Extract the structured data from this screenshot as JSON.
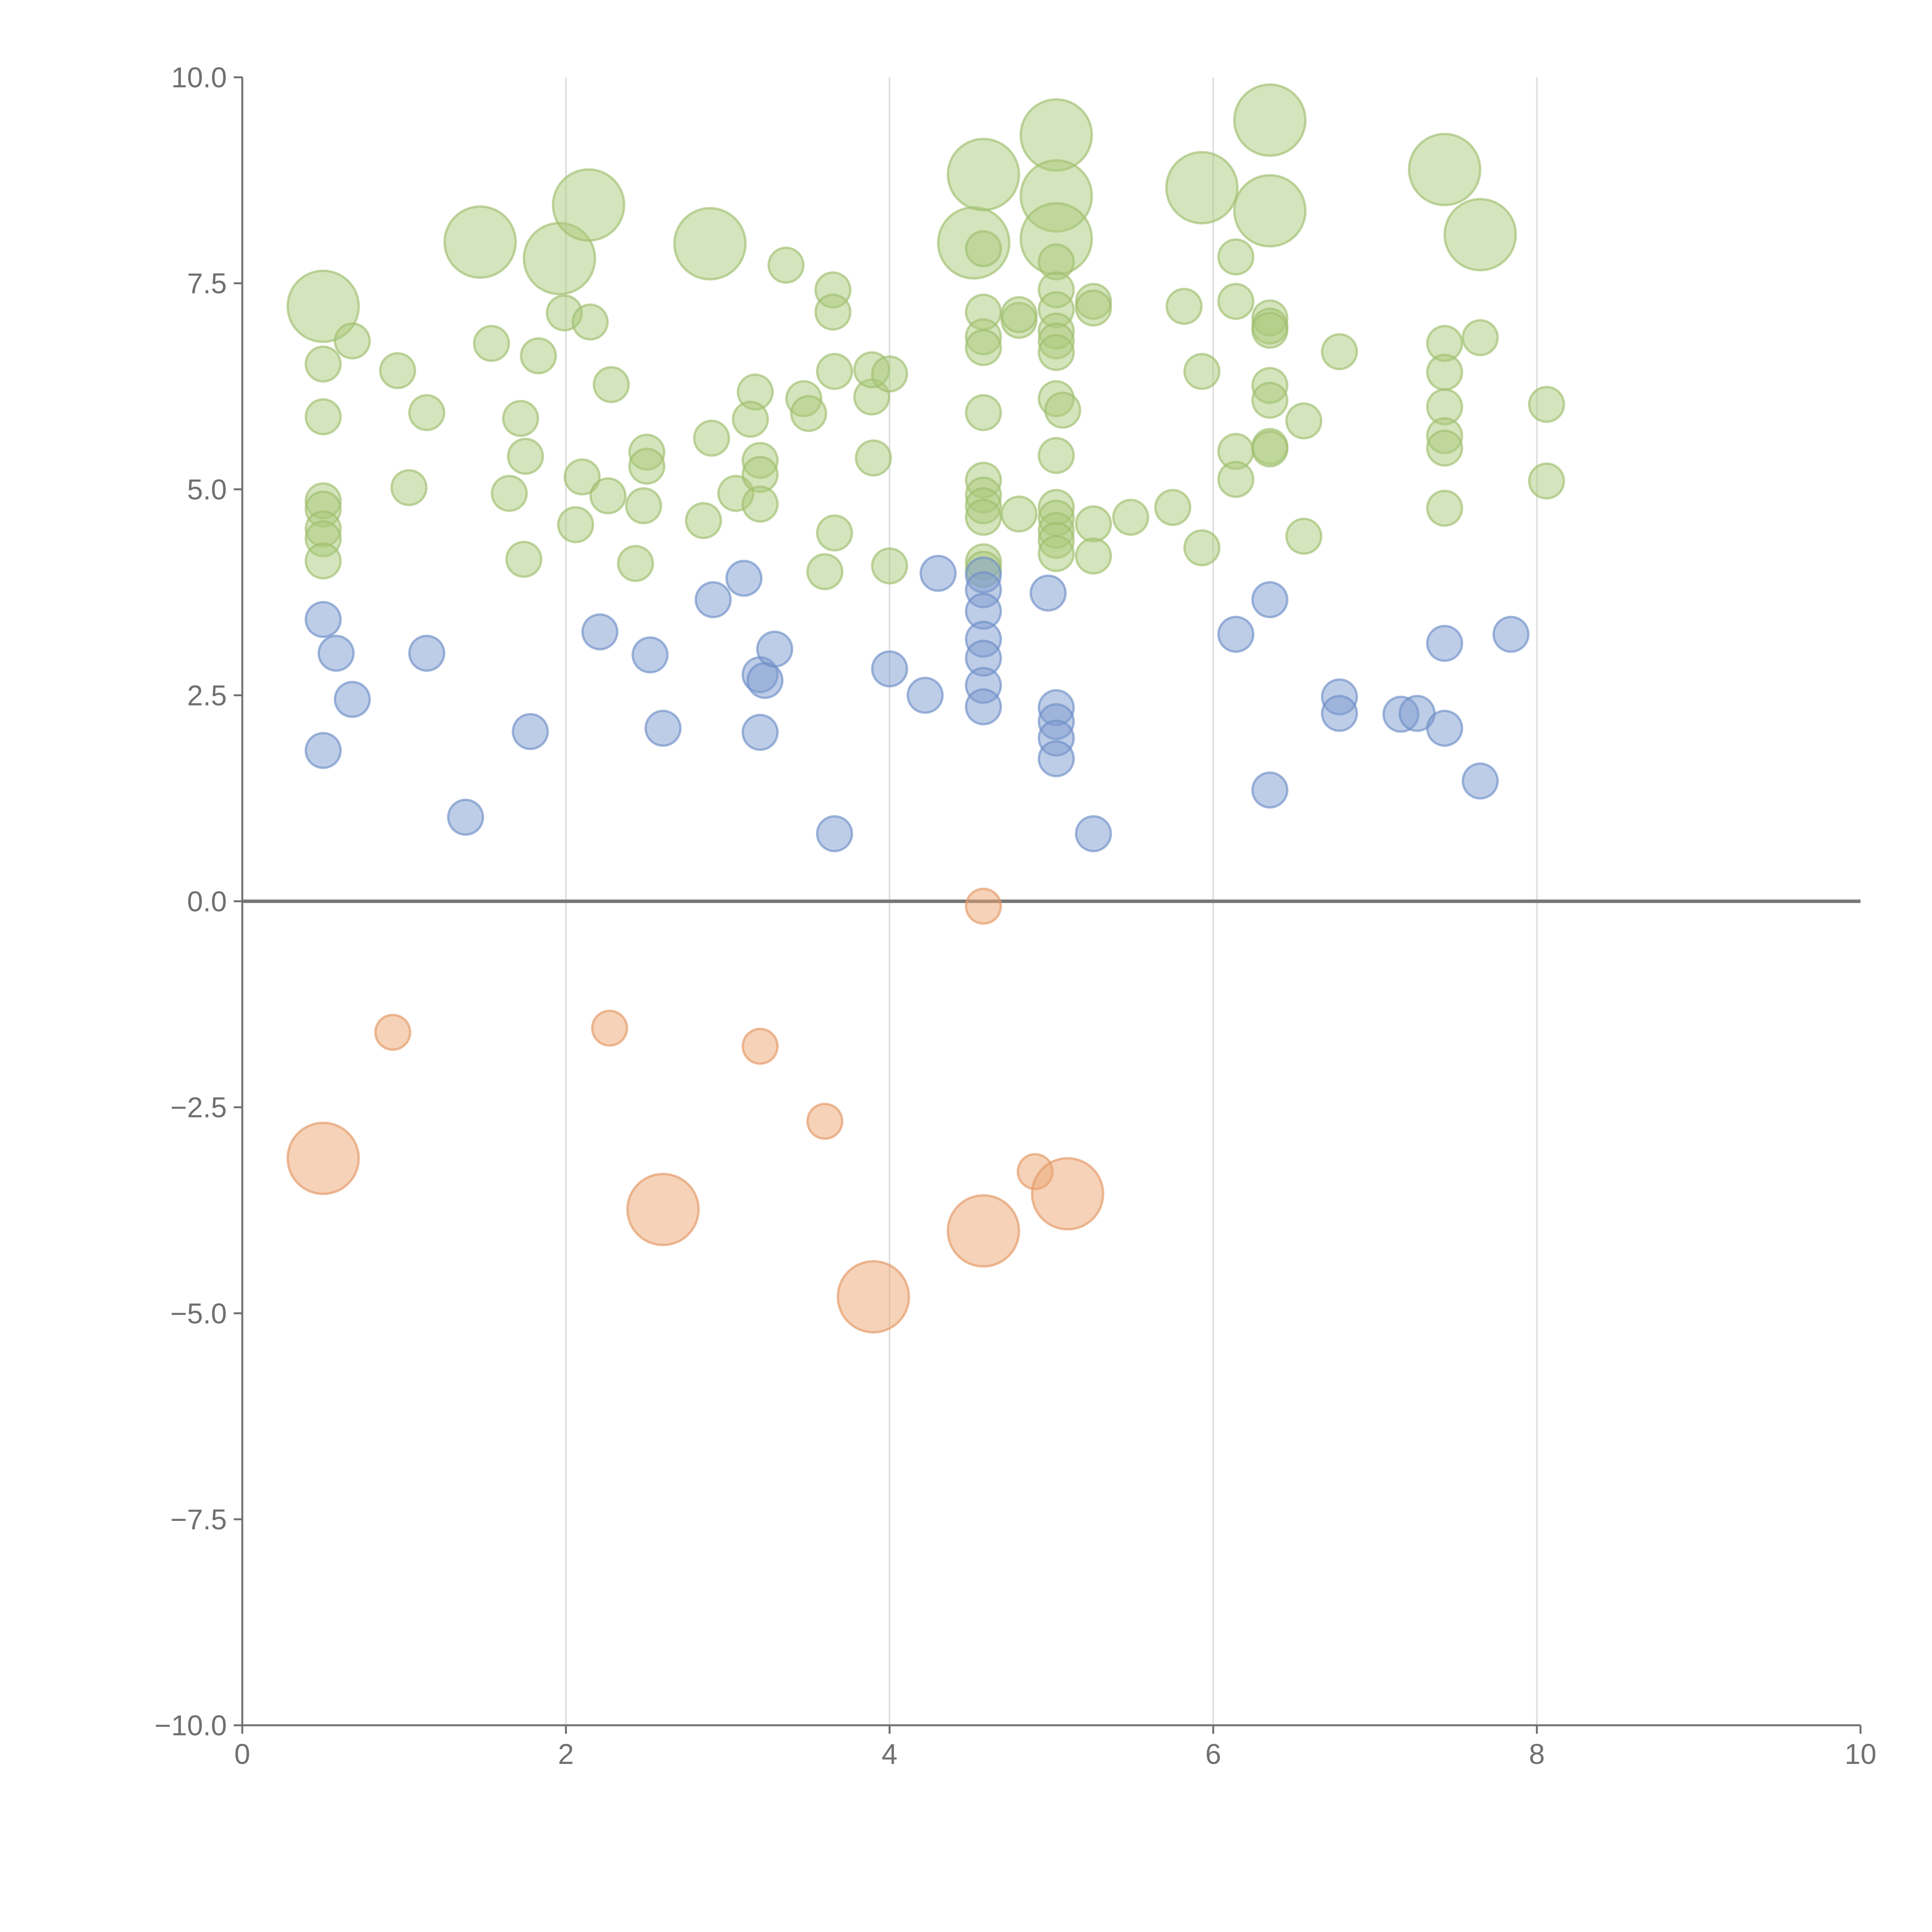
{
  "chart_data": {
    "type": "scatter",
    "title": "",
    "xlabel": "",
    "ylabel": "",
    "xlim": [
      0,
      10
    ],
    "ylim": [
      -10,
      10
    ],
    "x_ticks": [
      "0",
      "2",
      "4",
      "6",
      "8",
      "10"
    ],
    "y_ticks": [
      "10.0",
      "7.5",
      "5.0",
      "2.5",
      "0.0",
      "−2.5",
      "−5.0",
      "−7.5",
      "−10.0"
    ],
    "grid": "vertical",
    "legend": "none",
    "colors": {
      "green_fill": "#a9c97a",
      "green_stroke": "#9fbf6f",
      "blue_fill": "#7d9bd0",
      "blue_stroke": "#6f8fc7",
      "orange_fill": "#eba572",
      "orange_stroke": "#e49865",
      "axis": "#707070",
      "grid": "#dddddd",
      "zero_line": "#777777"
    },
    "series": [
      {
        "color": "green",
        "points": [
          [
            0.5,
            7.22,
            2
          ],
          [
            1.47,
            8.0,
            2
          ],
          [
            1.96,
            7.8,
            2
          ],
          [
            2.14,
            8.45,
            2
          ],
          [
            2.89,
            7.98,
            2
          ],
          [
            4.52,
            7.99,
            2
          ],
          [
            4.58,
            8.82,
            2
          ],
          [
            5.03,
            9.3,
            2
          ],
          [
            5.03,
            8.56,
            2
          ],
          [
            5.03,
            8.04,
            2
          ],
          [
            5.93,
            8.66,
            2
          ],
          [
            6.35,
            9.48,
            2
          ],
          [
            6.35,
            8.38,
            2
          ],
          [
            7.43,
            8.88,
            2
          ],
          [
            7.65,
            8.09,
            2
          ],
          [
            0.5,
            6.52,
            1
          ],
          [
            0.5,
            5.88,
            1
          ],
          [
            0.68,
            6.8,
            1
          ],
          [
            0.96,
            6.44,
            1
          ],
          [
            1.14,
            5.93,
            1
          ],
          [
            1.54,
            6.77,
            1
          ],
          [
            1.72,
            5.86,
            1
          ],
          [
            1.83,
            6.62,
            1
          ],
          [
            1.99,
            7.14,
            1
          ],
          [
            2.15,
            7.03,
            1
          ],
          [
            2.28,
            6.27,
            1
          ],
          [
            3.36,
            7.72,
            1
          ],
          [
            3.65,
            7.42,
            1
          ],
          [
            3.65,
            7.15,
            1
          ],
          [
            3.66,
            6.43,
            1
          ],
          [
            3.89,
            6.12,
            1
          ],
          [
            3.89,
            6.45,
            1
          ],
          [
            4.0,
            6.4,
            1
          ],
          [
            4.58,
            7.15,
            1
          ],
          [
            4.58,
            6.85,
            1
          ],
          [
            4.58,
            6.72,
            1
          ],
          [
            4.58,
            5.93,
            1
          ],
          [
            4.58,
            7.92,
            1
          ],
          [
            4.8,
            7.05,
            1
          ],
          [
            4.8,
            7.12,
            1
          ],
          [
            5.03,
            7.76,
            1
          ],
          [
            5.03,
            7.42,
            1
          ],
          [
            5.03,
            7.18,
            1
          ],
          [
            5.03,
            6.92,
            1
          ],
          [
            5.03,
            6.8,
            1
          ],
          [
            5.03,
            6.66,
            1
          ],
          [
            5.03,
            6.1,
            1
          ],
          [
            5.07,
            5.96,
            1
          ],
          [
            5.26,
            7.28,
            1
          ],
          [
            5.26,
            7.2,
            1
          ],
          [
            5.82,
            7.22,
            1
          ],
          [
            5.93,
            6.43,
            1
          ],
          [
            6.14,
            7.82,
            1
          ],
          [
            6.14,
            7.28,
            1
          ],
          [
            6.35,
            7.08,
            1
          ],
          [
            6.35,
            6.98,
            1
          ],
          [
            6.35,
            6.93,
            1
          ],
          [
            6.35,
            6.26,
            1
          ],
          [
            6.35,
            6.08,
            1
          ],
          [
            6.56,
            5.83,
            1
          ],
          [
            6.78,
            6.67,
            1
          ],
          [
            7.43,
            6.77,
            1
          ],
          [
            7.43,
            6.42,
            1
          ],
          [
            7.43,
            6.0,
            1
          ],
          [
            7.65,
            6.84,
            1
          ],
          [
            8.06,
            6.03,
            1
          ],
          [
            3.17,
            6.18,
            1
          ],
          [
            3.14,
            5.85,
            1
          ],
          [
            3.47,
            6.1,
            1
          ],
          [
            3.5,
            5.92,
            1
          ],
          [
            0.5,
            4.86,
            1
          ],
          [
            0.5,
            4.76,
            1
          ],
          [
            0.5,
            4.52,
            1
          ],
          [
            0.5,
            4.4,
            1
          ],
          [
            0.5,
            4.13,
            1
          ],
          [
            1.03,
            5.02,
            1
          ],
          [
            1.65,
            4.95,
            1
          ],
          [
            1.75,
            5.4,
            1
          ],
          [
            1.74,
            4.15,
            1
          ],
          [
            2.06,
            4.57,
            1
          ],
          [
            2.1,
            5.15,
            1
          ],
          [
            2.26,
            4.92,
            1
          ],
          [
            2.43,
            4.1,
            1
          ],
          [
            2.48,
            4.8,
            1
          ],
          [
            2.5,
            5.45,
            1
          ],
          [
            2.5,
            5.28,
            1
          ],
          [
            2.85,
            4.62,
            1
          ],
          [
            2.9,
            5.62,
            1
          ],
          [
            3.05,
            4.95,
            1
          ],
          [
            3.2,
            5.35,
            1
          ],
          [
            3.2,
            5.18,
            1
          ],
          [
            3.2,
            4.82,
            1
          ],
          [
            3.6,
            4.0,
            1
          ],
          [
            3.66,
            4.47,
            1
          ],
          [
            3.9,
            5.38,
            1
          ],
          [
            4.0,
            4.07,
            1
          ],
          [
            4.58,
            5.11,
            1
          ],
          [
            4.58,
            4.93,
            1
          ],
          [
            4.58,
            4.8,
            1
          ],
          [
            4.58,
            4.66,
            1
          ],
          [
            4.58,
            4.12,
            1
          ],
          [
            4.58,
            4.03,
            1
          ],
          [
            4.8,
            4.7,
            1
          ],
          [
            5.03,
            5.41,
            1
          ],
          [
            5.03,
            4.78,
            1
          ],
          [
            5.03,
            4.65,
            1
          ],
          [
            5.03,
            4.5,
            1
          ],
          [
            5.03,
            4.38,
            1
          ],
          [
            5.03,
            4.22,
            1
          ],
          [
            5.26,
            4.58,
            1
          ],
          [
            5.26,
            4.19,
            1
          ],
          [
            5.49,
            4.66,
            1
          ],
          [
            5.75,
            4.78,
            1
          ],
          [
            5.93,
            4.29,
            1
          ],
          [
            6.14,
            5.46,
            1
          ],
          [
            6.14,
            5.12,
            1
          ],
          [
            6.35,
            5.52,
            1
          ],
          [
            6.35,
            5.49,
            1
          ],
          [
            6.56,
            4.43,
            1
          ],
          [
            7.43,
            5.65,
            1
          ],
          [
            7.43,
            5.5,
            1
          ],
          [
            7.43,
            4.77,
            1
          ],
          [
            8.06,
            5.1,
            1
          ]
        ]
      },
      {
        "color": "blue",
        "points": [
          [
            0.5,
            3.42,
            1
          ],
          [
            0.58,
            3.01,
            1
          ],
          [
            0.68,
            2.45,
            1
          ],
          [
            0.5,
            1.83,
            1
          ],
          [
            1.14,
            3.01,
            1
          ],
          [
            1.38,
            1.02,
            1
          ],
          [
            1.78,
            2.06,
            1
          ],
          [
            2.21,
            3.27,
            1
          ],
          [
            2.52,
            2.99,
            1
          ],
          [
            2.6,
            2.1,
            1
          ],
          [
            2.91,
            3.66,
            1
          ],
          [
            3.1,
            3.92,
            1
          ],
          [
            3.2,
            2.75,
            1
          ],
          [
            3.23,
            2.68,
            1
          ],
          [
            3.29,
            3.06,
            1
          ],
          [
            3.2,
            2.05,
            1
          ],
          [
            3.66,
            0.82,
            1
          ],
          [
            4.0,
            2.82,
            1
          ],
          [
            4.22,
            2.5,
            1
          ],
          [
            4.3,
            3.98,
            1
          ],
          [
            4.58,
            3.96,
            1
          ],
          [
            4.58,
            3.78,
            1
          ],
          [
            4.58,
            3.52,
            1
          ],
          [
            4.58,
            3.18,
            1
          ],
          [
            4.58,
            2.95,
            1
          ],
          [
            4.58,
            2.62,
            1
          ],
          [
            4.58,
            2.36,
            1
          ],
          [
            4.98,
            3.74,
            1
          ],
          [
            5.03,
            2.35,
            1
          ],
          [
            5.03,
            2.18,
            1
          ],
          [
            5.03,
            1.98,
            1
          ],
          [
            5.03,
            1.73,
            1
          ],
          [
            5.26,
            0.82,
            1
          ],
          [
            6.14,
            3.24,
            1
          ],
          [
            6.35,
            3.66,
            1
          ],
          [
            6.35,
            1.35,
            1
          ],
          [
            6.78,
            2.48,
            1
          ],
          [
            6.78,
            2.28,
            1
          ],
          [
            7.16,
            2.27,
            1
          ],
          [
            7.26,
            2.28,
            1
          ],
          [
            7.43,
            3.13,
            1
          ],
          [
            7.43,
            2.1,
            1
          ],
          [
            7.65,
            1.46,
            1
          ],
          [
            7.84,
            3.24,
            1
          ]
        ]
      },
      {
        "color": "orange",
        "points": [
          [
            4.58,
            -0.06,
            1
          ],
          [
            0.93,
            -1.59,
            1
          ],
          [
            2.27,
            -1.54,
            1
          ],
          [
            3.2,
            -1.76,
            1
          ],
          [
            3.6,
            -2.67,
            1
          ],
          [
            4.9,
            -3.28,
            1
          ],
          [
            0.5,
            -3.12,
            2
          ],
          [
            2.6,
            -3.74,
            2
          ],
          [
            3.9,
            -4.8,
            2
          ],
          [
            4.58,
            -4.0,
            2
          ],
          [
            5.1,
            -3.55,
            2
          ]
        ]
      }
    ]
  }
}
